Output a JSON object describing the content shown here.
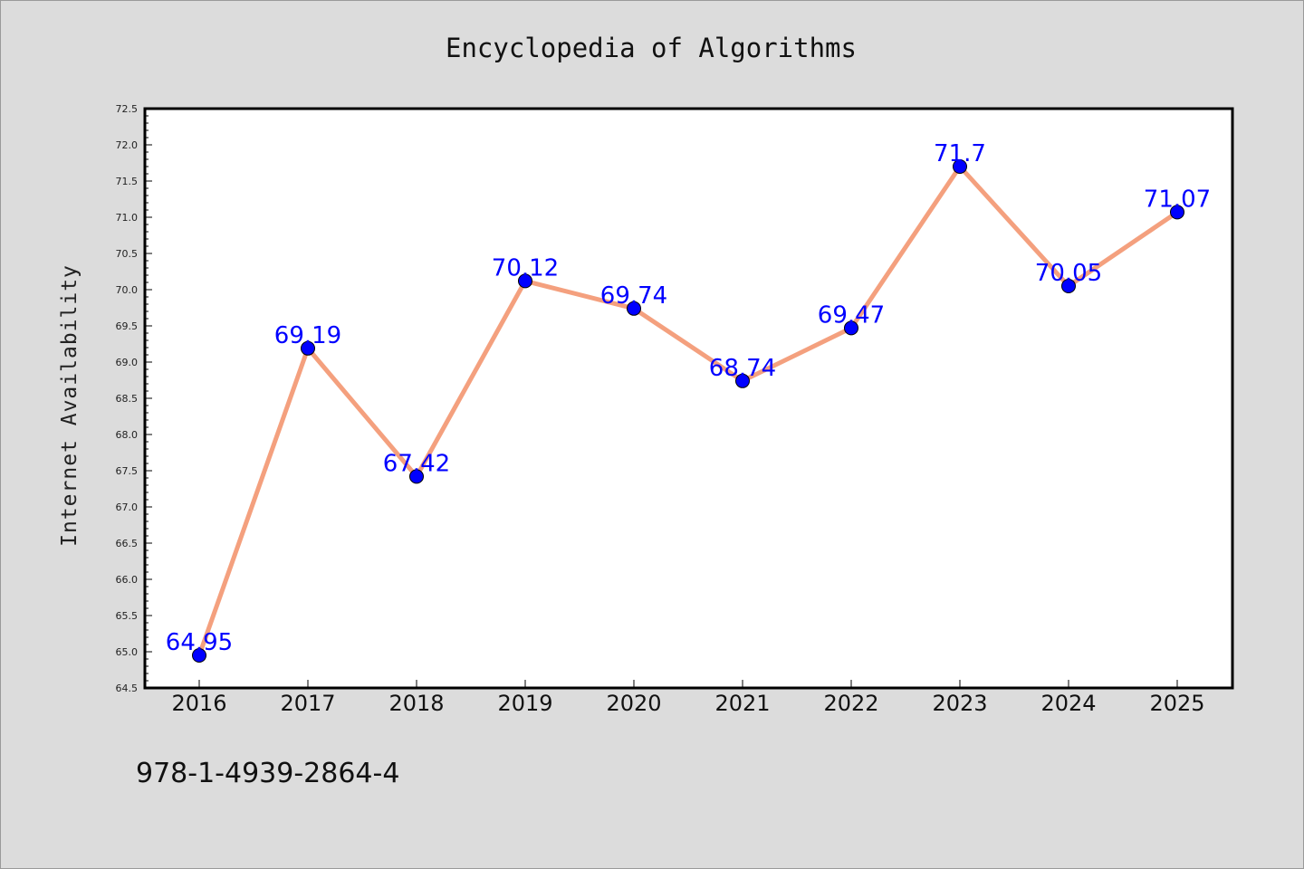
{
  "chart_data": {
    "type": "line",
    "title": "Encyclopedia of Algorithms",
    "xlabel": "",
    "ylabel": "Internet Availability",
    "x": [
      "2016",
      "2017",
      "2018",
      "2019",
      "2020",
      "2021",
      "2022",
      "2023",
      "2024",
      "2025"
    ],
    "series": [
      {
        "values": [
          64.95,
          69.19,
          67.42,
          70.12,
          69.74,
          68.74,
          69.47,
          71.7,
          70.05,
          71.07
        ],
        "line_color": "#f4a07e",
        "marker_color": "#0000ff"
      }
    ],
    "data_labels": [
      "64.95",
      "69.19",
      "67.42",
      "70.12",
      "69.74",
      "68.74",
      "69.47",
      "71.7",
      "70.05",
      "71.07"
    ],
    "ylim": [
      64.5,
      72.5
    ],
    "yticks": [
      "64.5",
      "65.0",
      "65.5",
      "66.0",
      "66.5",
      "67.0",
      "67.5",
      "68.0",
      "68.5",
      "69.0",
      "69.5",
      "70.0",
      "70.5",
      "71.0",
      "71.5",
      "72.0",
      "72.5"
    ],
    "grid": false,
    "legend": "none",
    "label_color": "#0000ff"
  },
  "footer": {
    "isbn": "978-1-4939-2864-4"
  }
}
